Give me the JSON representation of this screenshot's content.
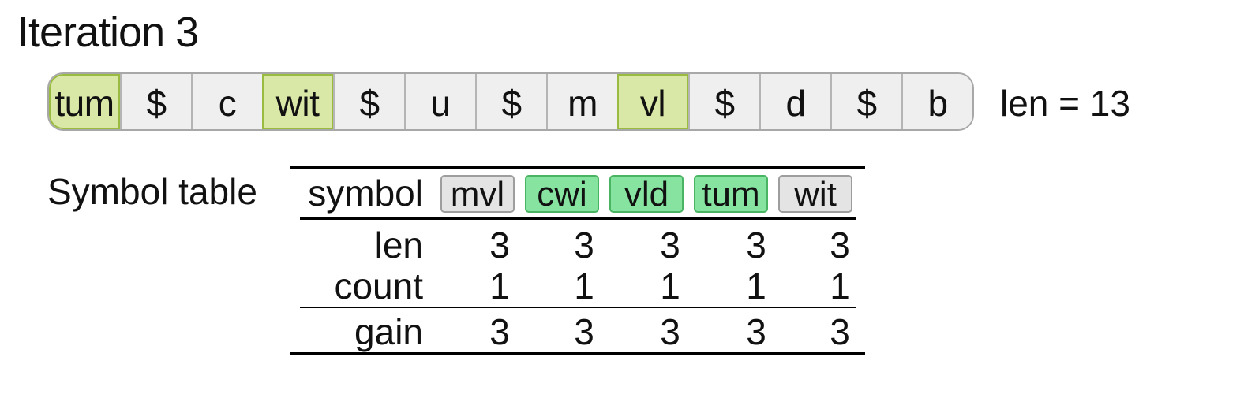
{
  "title": "Iteration 3",
  "tokens": [
    {
      "text": "tum",
      "highlight": true
    },
    {
      "text": "$",
      "highlight": false
    },
    {
      "text": "c",
      "highlight": false
    },
    {
      "text": "wit",
      "highlight": true
    },
    {
      "text": "$",
      "highlight": false
    },
    {
      "text": "u",
      "highlight": false
    },
    {
      "text": "$",
      "highlight": false
    },
    {
      "text": "m",
      "highlight": false
    },
    {
      "text": "vl",
      "highlight": true
    },
    {
      "text": "$",
      "highlight": false
    },
    {
      "text": "d",
      "highlight": false
    },
    {
      "text": "$",
      "highlight": false
    },
    {
      "text": "b",
      "highlight": false
    }
  ],
  "length_label": "len = 13",
  "symbol_table": {
    "label": "Symbol table",
    "row_labels": {
      "symbol": "symbol",
      "len": "len",
      "count": "count",
      "gain": "gain"
    },
    "symbols": [
      {
        "symbol": "mvl",
        "style": "grey",
        "len": "3",
        "count": "1",
        "gain": "3"
      },
      {
        "symbol": "cwi",
        "style": "green",
        "len": "3",
        "count": "1",
        "gain": "3"
      },
      {
        "symbol": "vld",
        "style": "green",
        "len": "3",
        "count": "1",
        "gain": "3"
      },
      {
        "symbol": "tum",
        "style": "green",
        "len": "3",
        "count": "1",
        "gain": "3"
      },
      {
        "symbol": "wit",
        "style": "grey",
        "len": "3",
        "count": "1",
        "gain": "3"
      }
    ]
  },
  "colors": {
    "token_bg": "#efefef",
    "token_highlight": "#d9e8a6",
    "token_highlight_border": "#99bb3f",
    "symbol_grey": "#e4e4e4",
    "symbol_green": "#86e3a0"
  }
}
